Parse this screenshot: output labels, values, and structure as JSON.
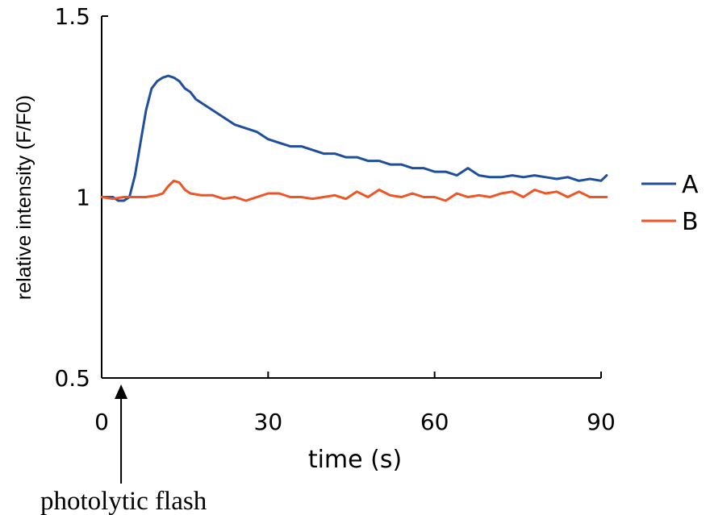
{
  "chart_data": {
    "type": "line",
    "xlabel": "time (s)",
    "ylabel": "relative intensity (F/F0)",
    "xlim": [
      0,
      90
    ],
    "ylim": [
      0.5,
      1.5
    ],
    "xticks": [
      0,
      30,
      60,
      90
    ],
    "yticks": [
      {
        "value": 0.5,
        "label": "0.5"
      },
      {
        "value": 1,
        "label": "1"
      },
      {
        "value": 1.5,
        "label": "1.5"
      }
    ],
    "grid": false,
    "legend_position": "right",
    "series": [
      {
        "name": "A",
        "color": "#1f4e9c",
        "x": [
          0,
          2,
          3,
          4,
          5,
          6,
          7,
          8,
          9,
          10,
          11,
          12,
          13,
          14,
          15,
          16,
          17,
          18,
          20,
          22,
          24,
          26,
          28,
          30,
          32,
          34,
          36,
          38,
          40,
          42,
          44,
          46,
          48,
          50,
          52,
          54,
          56,
          58,
          60,
          62,
          64,
          66,
          68,
          70,
          72,
          74,
          76,
          78,
          80,
          82,
          84,
          86,
          88,
          90,
          91
        ],
        "y": [
          1.0,
          1.0,
          0.99,
          0.99,
          1.0,
          1.06,
          1.15,
          1.24,
          1.3,
          1.32,
          1.33,
          1.335,
          1.33,
          1.32,
          1.3,
          1.29,
          1.27,
          1.26,
          1.24,
          1.22,
          1.2,
          1.19,
          1.18,
          1.16,
          1.15,
          1.14,
          1.14,
          1.13,
          1.12,
          1.12,
          1.11,
          1.11,
          1.1,
          1.1,
          1.09,
          1.09,
          1.08,
          1.08,
          1.07,
          1.07,
          1.06,
          1.08,
          1.06,
          1.055,
          1.055,
          1.06,
          1.055,
          1.06,
          1.055,
          1.05,
          1.055,
          1.045,
          1.05,
          1.045,
          1.06
        ]
      },
      {
        "name": "B",
        "color": "#f05423",
        "x": [
          0,
          2,
          4,
          6,
          8,
          10,
          11,
          12,
          13,
          14,
          15,
          16,
          18,
          20,
          22,
          24,
          26,
          28,
          30,
          32,
          34,
          36,
          38,
          40,
          42,
          44,
          46,
          48,
          50,
          52,
          54,
          56,
          58,
          60,
          62,
          64,
          66,
          68,
          70,
          72,
          74,
          76,
          78,
          80,
          82,
          84,
          86,
          88,
          90,
          91
        ],
        "y": [
          1.0,
          0.995,
          1.0,
          1.0,
          1.0,
          1.005,
          1.01,
          1.03,
          1.045,
          1.04,
          1.02,
          1.01,
          1.005,
          1.005,
          0.995,
          1.0,
          0.99,
          1.0,
          1.01,
          1.01,
          1.0,
          1.0,
          0.995,
          1.0,
          1.005,
          0.995,
          1.015,
          1.0,
          1.02,
          1.005,
          1.0,
          1.01,
          1.0,
          1.0,
          0.99,
          1.01,
          1.0,
          1.005,
          1.0,
          1.01,
          1.015,
          1.0,
          1.02,
          1.01,
          1.015,
          1.0,
          1.015,
          1.0,
          1.0,
          1.0
        ]
      }
    ],
    "annotations": [
      {
        "text": "photolytic flash",
        "x": 3.5
      }
    ]
  }
}
